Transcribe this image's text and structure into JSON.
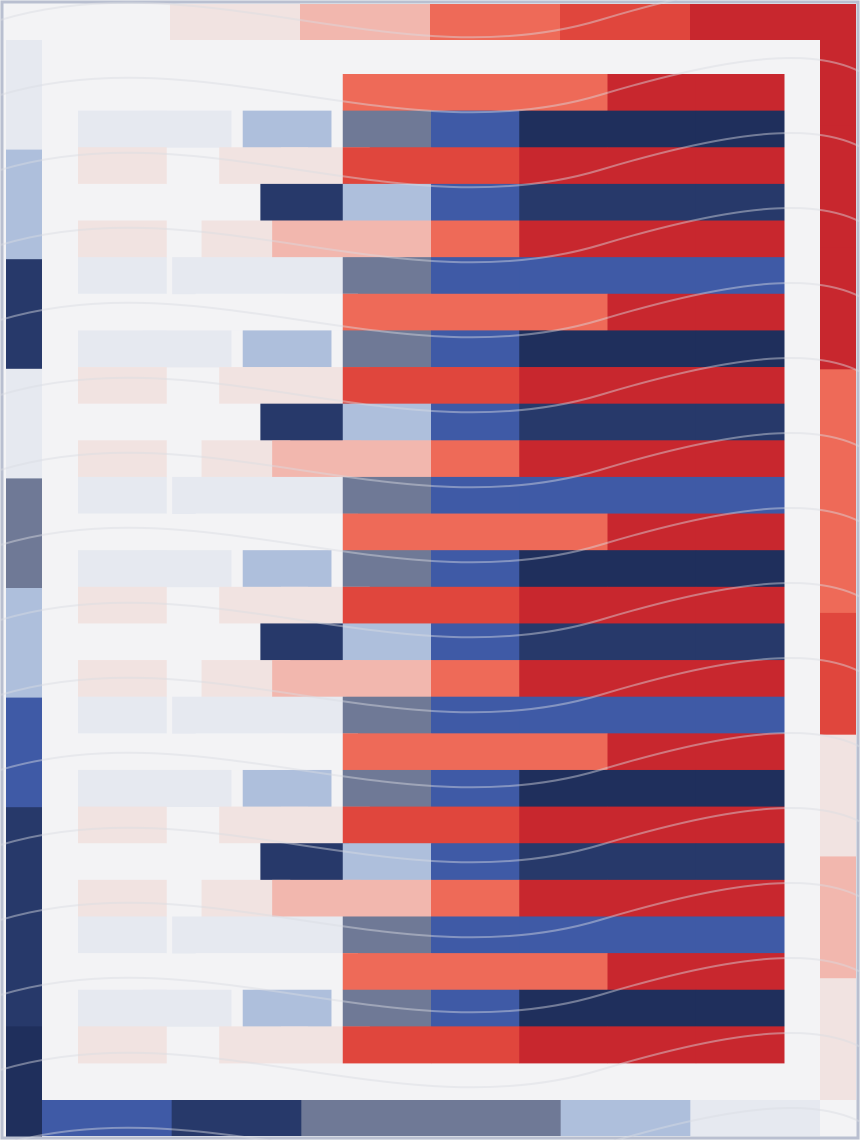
{
  "image": {
    "subject": "quilt",
    "palette": {
      "background": "#f4f4f6",
      "white": "#f3f3f5",
      "white_red_dot": "#f1e3e1",
      "white_blue_dot": "#e6e9f0",
      "pink": "#f2b7ae",
      "coral": "#ee6a58",
      "red": "#e0463d",
      "dark_red": "#c8272e",
      "light_blue": "#aebfdc",
      "grey_blue": "#6f7996",
      "navy": "#27396a",
      "blue": "#3f5aa6",
      "dark_navy": "#1f2f5c",
      "quilting_line": "#d9dbe2",
      "edge_line": "#b9bfd0"
    },
    "strip_rows": [
      [
        "white",
        "white",
        "white",
        "coral",
        "coral",
        "coral",
        "dark_red",
        "dark_red"
      ],
      [
        "white_blue_dot",
        "white_blue_dot",
        "light_blue",
        "grey_blue",
        "blue",
        "dark_navy",
        "dark_navy",
        "dark_navy"
      ],
      [
        "white_red_dot",
        "white_red_dot",
        "white_red_dot",
        "red",
        "red",
        "dark_red",
        "dark_red",
        "dark_red"
      ],
      [
        "white",
        "white",
        "navy",
        "light_blue",
        "blue",
        "navy",
        "navy",
        "navy"
      ],
      [
        "white_red_dot",
        "white_red_dot",
        "pink",
        "pink",
        "coral",
        "dark_red",
        "dark_red",
        "dark_red"
      ],
      [
        "white_blue_dot",
        "white_blue_dot",
        "white_blue_dot",
        "grey_blue",
        "blue",
        "blue",
        "blue",
        "blue"
      ]
    ],
    "row_count": 27,
    "left_border_segments": [
      "white_blue_dot",
      "light_blue",
      "navy",
      "white_blue_dot",
      "grey_blue",
      "light_blue",
      "blue",
      "navy",
      "navy",
      "dark_navy"
    ],
    "right_border_segments": [
      "dark_red",
      "dark_red",
      "dark_red",
      "coral",
      "coral",
      "red",
      "white_red_dot",
      "pink",
      "white_red_dot"
    ],
    "top_border_segments": [
      "white",
      "white_red_dot",
      "pink",
      "coral",
      "red",
      "dark_red"
    ],
    "bottom_border_segments": [
      "blue",
      "navy",
      "grey_blue",
      "grey_blue",
      "light_blue",
      "white_blue_dot"
    ]
  }
}
